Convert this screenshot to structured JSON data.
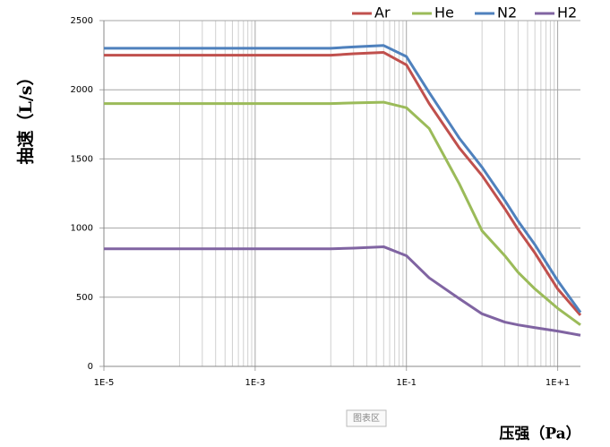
{
  "chart_data": {
    "type": "line",
    "y_label": "抽速（L/s）",
    "x_label": "压强（Pa）",
    "annotations": [
      "图表区"
    ],
    "xscale": "log",
    "x": [
      1e-05,
      0.0001,
      0.001,
      0.01,
      0.02,
      0.05,
      0.1,
      0.2,
      0.5,
      1,
      2,
      3,
      5,
      10,
      20
    ],
    "series": [
      {
        "name": "Ar",
        "color": "#c0504d",
        "values": [
          2250,
          2250,
          2250,
          2250,
          2260,
          2270,
          2180,
          1900,
          1580,
          1380,
          1140,
          990,
          820,
          560,
          370
        ]
      },
      {
        "name": "He",
        "color": "#9bbb59",
        "values": [
          1900,
          1900,
          1900,
          1900,
          1905,
          1910,
          1870,
          1720,
          1320,
          980,
          800,
          680,
          560,
          420,
          300
        ]
      },
      {
        "name": "N2",
        "color": "#4f81bd",
        "values": [
          2300,
          2300,
          2300,
          2300,
          2310,
          2320,
          2240,
          1980,
          1650,
          1440,
          1200,
          1050,
          880,
          620,
          390
        ]
      },
      {
        "name": "H2",
        "color": "#8064a2",
        "values": [
          850,
          850,
          850,
          850,
          855,
          865,
          800,
          640,
          490,
          380,
          320,
          300,
          280,
          255,
          225
        ]
      }
    ],
    "xlim": [
      1e-05,
      20
    ],
    "ylim": [
      0,
      2500
    ],
    "xticks": [
      {
        "value": 1e-05,
        "label": "1E-5"
      },
      {
        "value": 0.001,
        "label": "1E-3"
      },
      {
        "value": 0.1,
        "label": "1E-1"
      },
      {
        "value": 10,
        "label": "1E+1"
      }
    ],
    "x_minor_grid": [
      0.0001,
      0.0002,
      0.0003,
      0.0004,
      0.0005,
      0.0006,
      0.0007,
      0.0008,
      0.0009,
      0.01,
      0.02,
      0.03,
      0.04,
      0.05,
      0.06,
      0.07,
      0.08,
      0.09,
      1,
      2,
      3,
      4,
      5,
      6,
      7,
      8,
      9
    ],
    "yticks": [
      0,
      500,
      1000,
      1500,
      2000,
      2500
    ],
    "grid": true,
    "legend": "top"
  }
}
